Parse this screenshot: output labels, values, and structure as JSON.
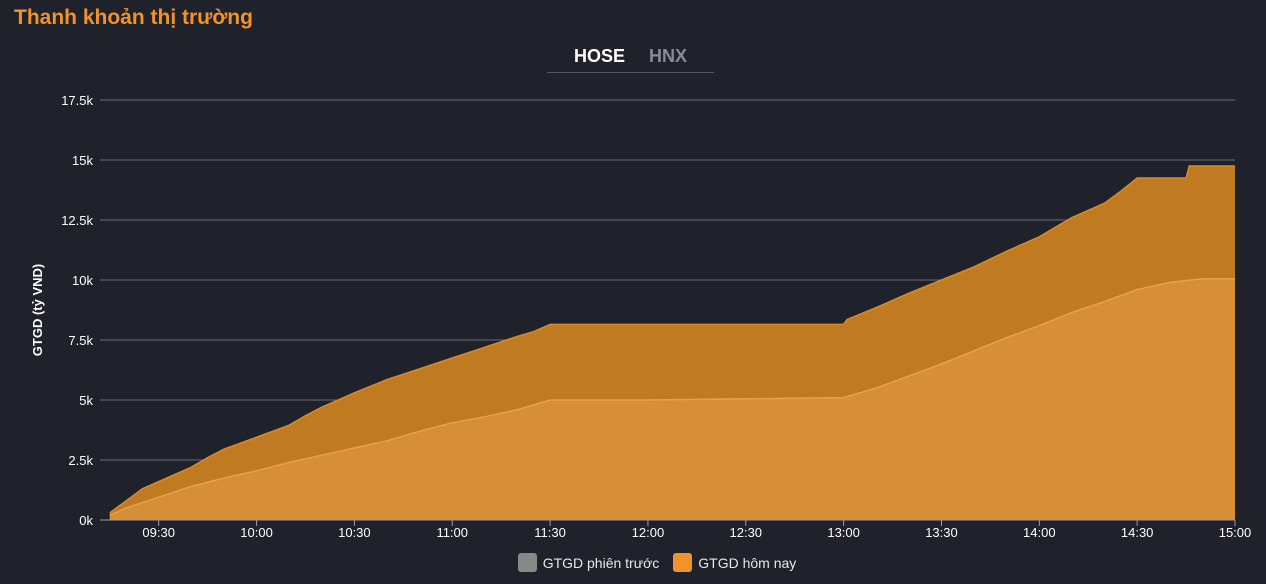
{
  "page": {
    "title": "Thanh khoản thị trường"
  },
  "tabs": [
    {
      "label": "HOSE",
      "active": true
    },
    {
      "label": "HNX",
      "active": false
    }
  ],
  "colors": {
    "previous": "#c07a22",
    "today": "#d68f38",
    "previous_line": "#d88a2a",
    "today_line": "#e9a04a",
    "legend_previous": "#888888",
    "legend_today": "#f0932b",
    "grid": "#6b6d78",
    "text": "#ffffff"
  },
  "chart_data": {
    "type": "area",
    "ylabel": "GTGD (tỷ VND)",
    "yticks": [
      {
        "value": 0,
        "label": "0k"
      },
      {
        "value": 2500,
        "label": "2.5k"
      },
      {
        "value": 5000,
        "label": "5k"
      },
      {
        "value": 7500,
        "label": "7.5k"
      },
      {
        "value": 10000,
        "label": "10k"
      },
      {
        "value": 12500,
        "label": "12.5k"
      },
      {
        "value": 15000,
        "label": "15k"
      },
      {
        "value": 17500,
        "label": "17.5k"
      }
    ],
    "ylim": [
      0,
      17500
    ],
    "xlim": [
      "09:12",
      "15:00"
    ],
    "xticks": [
      "09:30",
      "10:00",
      "10:30",
      "11:00",
      "11:30",
      "12:00",
      "12:30",
      "13:00",
      "13:30",
      "14:00",
      "14:30",
      "15:00"
    ],
    "grid": true,
    "legend_position": "bottom",
    "series": [
      {
        "name": "GTGD phiên trước",
        "x": [
          "09:15",
          "09:20",
          "09:25",
          "09:30",
          "09:40",
          "09:45",
          "09:50",
          "10:00",
          "10:10",
          "10:15",
          "10:20",
          "10:30",
          "10:40",
          "10:50",
          "11:00",
          "11:10",
          "11:20",
          "11:25",
          "11:30",
          "12:00",
          "12:30",
          "13:00",
          "13:01",
          "13:10",
          "13:20",
          "13:30",
          "13:40",
          "13:50",
          "14:00",
          "14:10",
          "14:20",
          "14:25",
          "14:30",
          "14:45",
          "14:46",
          "15:00"
        ],
        "values": [
          300,
          800,
          1300,
          1600,
          2200,
          2600,
          2950,
          3450,
          3950,
          4350,
          4700,
          5300,
          5850,
          6300,
          6750,
          7200,
          7650,
          7850,
          8150,
          8150,
          8150,
          8150,
          8350,
          8850,
          9450,
          10000,
          10550,
          11200,
          11800,
          12600,
          13200,
          13700,
          14250,
          14250,
          14750,
          14750
        ]
      },
      {
        "name": "GTGD hôm nay",
        "x": [
          "09:15",
          "09:20",
          "09:30",
          "09:40",
          "09:50",
          "10:00",
          "10:10",
          "10:20",
          "10:30",
          "10:40",
          "10:50",
          "11:00",
          "11:10",
          "11:20",
          "11:30",
          "12:00",
          "12:30",
          "13:00",
          "13:10",
          "13:20",
          "13:30",
          "13:40",
          "13:50",
          "14:00",
          "14:10",
          "14:20",
          "14:30",
          "14:40",
          "14:50",
          "15:00"
        ],
        "values": [
          200,
          500,
          950,
          1400,
          1750,
          2050,
          2400,
          2700,
          3000,
          3300,
          3700,
          4050,
          4300,
          4600,
          5000,
          5000,
          5050,
          5100,
          5500,
          6000,
          6500,
          7050,
          7600,
          8100,
          8650,
          9100,
          9600,
          9900,
          10050,
          10050
        ]
      }
    ]
  }
}
